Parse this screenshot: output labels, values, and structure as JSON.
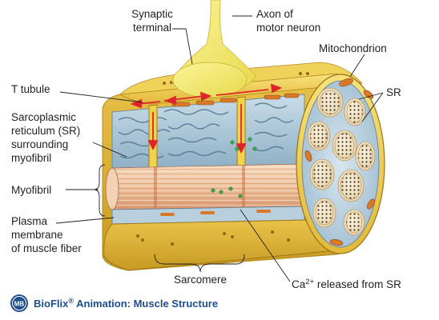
{
  "labels": {
    "synaptic_terminal_line1": "Synaptic",
    "synaptic_terminal_line2": "terminal",
    "axon_line1": "Axon of",
    "axon_line2": "motor neuron",
    "mitochondrion": "Mitochondrion",
    "t_tubule": "T tubule",
    "sr_right": "SR",
    "sr_left_line1": "Sarcoplasmic",
    "sr_left_line2": "reticulum (SR)",
    "sr_left_line3": "surrounding",
    "sr_left_line4": "myofibril",
    "myofibril": "Myofibril",
    "plasma_line1": "Plasma",
    "plasma_line2": "membrane",
    "plasma_line3": "of muscle fiber",
    "sarcomere": "Sarcomere",
    "ca_prefix": "Ca",
    "ca_superscript": "2+",
    "ca_suffix": " released from SR"
  },
  "footer": {
    "badge": "MB",
    "title_part1": "BioFlix",
    "registered_mark": "®",
    "title_part2": " Animation: Muscle Structure"
  },
  "colors": {
    "membrane_yellow": "#f2d24a",
    "membrane_dark": "#c9a227",
    "neuron_yellow": "#f5ec6a",
    "sr_blue": "#a9c6d8",
    "sr_dark": "#5b7f99",
    "mito_orange": "#d9782a",
    "arrow_red": "#e0242a",
    "ca_green": "#3aa64a",
    "footer_blue": "#1f4e8c"
  },
  "icons": {
    "badge_icon": "mb-badge-icon"
  }
}
